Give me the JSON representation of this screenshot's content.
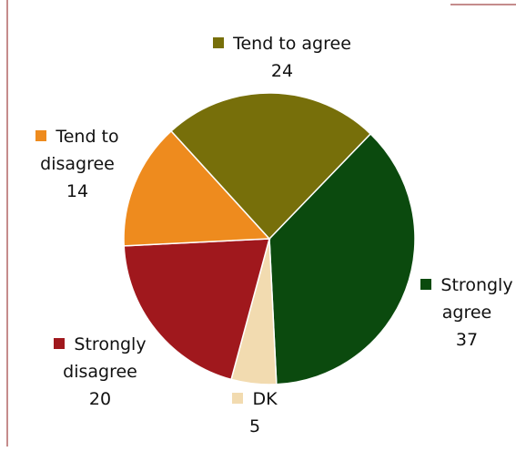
{
  "chart_data": {
    "type": "pie",
    "categories": [
      "Strongly agree",
      "DK",
      "Strongly disagree",
      "Tend to disagree",
      "Tend to agree"
    ],
    "values": [
      37,
      5,
      20,
      14,
      24
    ],
    "colors": [
      "#0b4a0e",
      "#f2dbb0",
      "#a0181d",
      "#ee8b1e",
      "#776f0a"
    ]
  }
}
